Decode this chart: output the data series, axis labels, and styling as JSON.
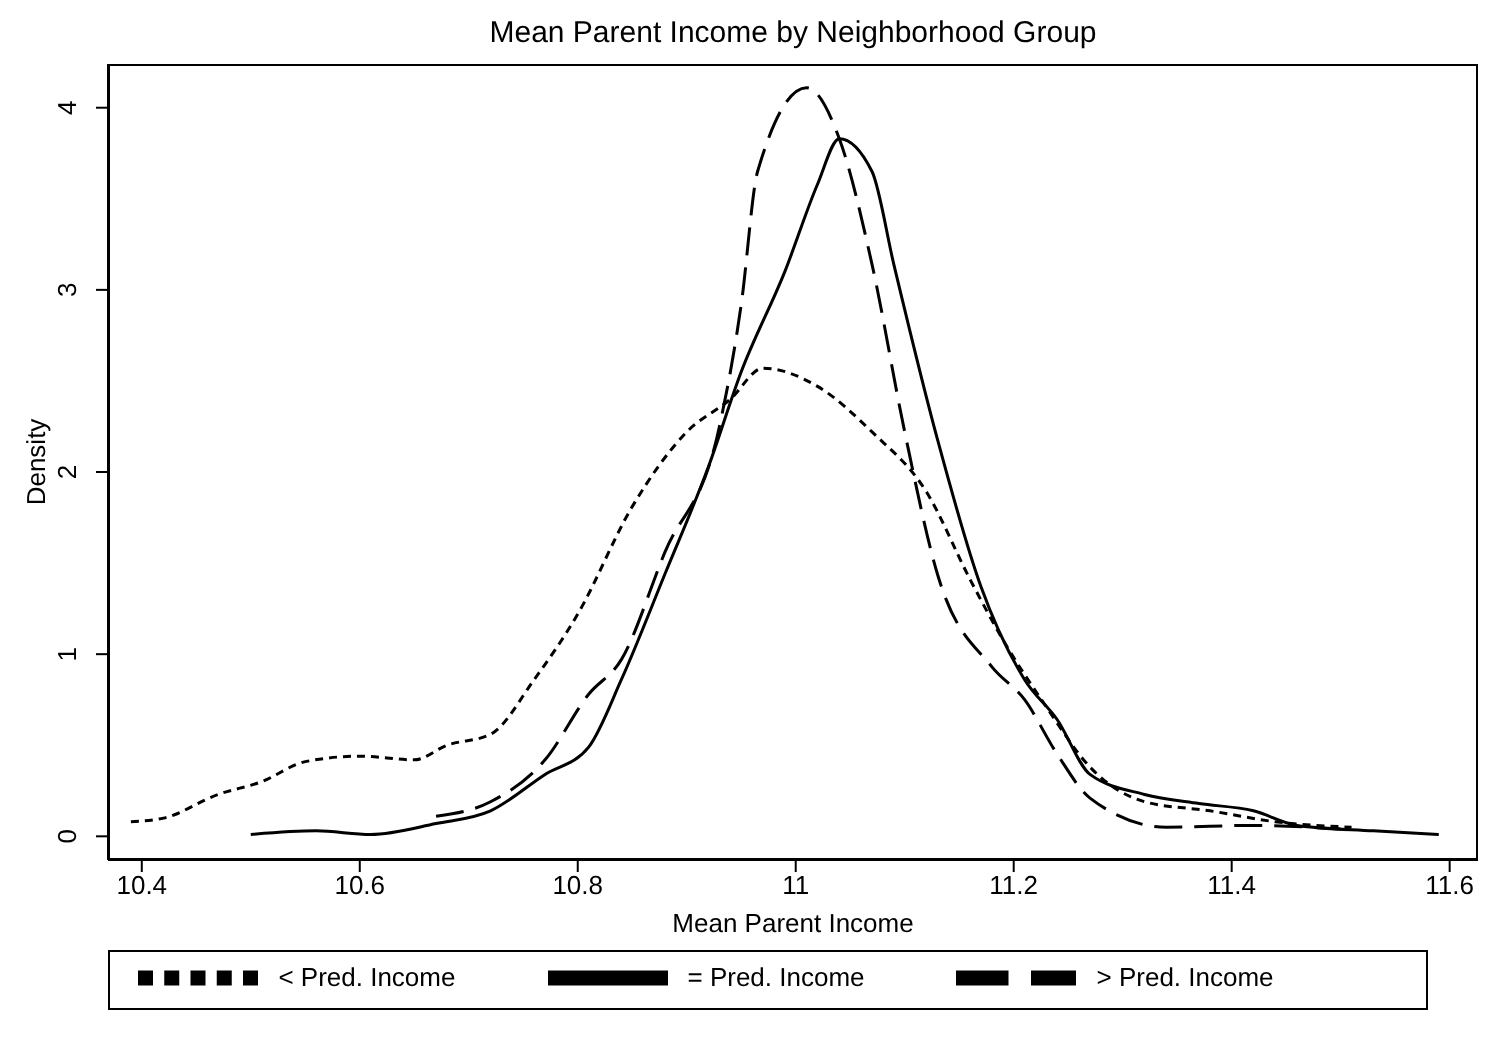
{
  "chart_data": {
    "type": "line",
    "title": "Mean Parent Income by Neighborhood Group",
    "xlabel": "Mean Parent Income",
    "ylabel": "Density",
    "xlim": [
      10.369,
      11.626
    ],
    "xticks": [
      10.4,
      10.6,
      10.8,
      {
        "value": 11,
        "label": "11"
      },
      11.2,
      11.4,
      11.6
    ],
    "ylim": [
      -0.13,
      4.24
    ],
    "yticks": [
      0,
      1,
      2,
      3,
      4
    ],
    "grid": false,
    "legend": "bottom",
    "marker": "none",
    "series": [
      {
        "name": "< Pred. Income",
        "color": "#000000",
        "line_style": "dotted",
        "x": [
          10.39,
          10.42,
          10.47,
          10.51,
          10.55,
          10.6,
          10.65,
          10.68,
          10.72,
          10.76,
          10.8,
          10.85,
          10.9,
          10.94,
          10.97,
          11.02,
          11.07,
          11.12,
          11.16,
          11.19,
          11.23,
          11.27,
          11.32,
          11.38,
          11.44,
          11.51
        ],
        "values": [
          0.08,
          0.1,
          0.23,
          0.3,
          0.41,
          0.44,
          0.42,
          0.5,
          0.56,
          0.86,
          1.22,
          1.81,
          2.22,
          2.4,
          2.57,
          2.47,
          2.22,
          1.89,
          1.41,
          1.08,
          0.71,
          0.38,
          0.19,
          0.14,
          0.08,
          0.05
        ]
      },
      {
        "name": "= Pred. Income",
        "color": "#000000",
        "line_style": "solid",
        "x": [
          10.5,
          10.56,
          10.61,
          10.67,
          10.72,
          10.77,
          10.81,
          10.84,
          10.88,
          10.92,
          10.95,
          10.99,
          11.02,
          11.04,
          11.07,
          11.09,
          11.13,
          11.17,
          11.21,
          11.24,
          11.27,
          11.32,
          11.37,
          11.42,
          11.46,
          11.53,
          11.59
        ],
        "values": [
          0.01,
          0.03,
          0.01,
          0.07,
          0.14,
          0.34,
          0.49,
          0.86,
          1.44,
          2.03,
          2.55,
          3.1,
          3.58,
          3.83,
          3.65,
          3.14,
          2.18,
          1.37,
          0.86,
          0.64,
          0.34,
          0.23,
          0.18,
          0.14,
          0.06,
          0.03,
          0.01
        ]
      },
      {
        "name": "> Pred. Income",
        "color": "#000000",
        "line_style": "dashed",
        "x": [
          10.67,
          10.72,
          10.77,
          10.81,
          10.84,
          10.88,
          10.93,
          10.95,
          10.965,
          11.01,
          11.04,
          11.07,
          11.1,
          11.13,
          11.18,
          11.21,
          11.24,
          11.27,
          11.34,
          11.42,
          11.5
        ],
        "values": [
          0.11,
          0.19,
          0.42,
          0.78,
          0.97,
          1.56,
          2.25,
          2.92,
          3.65,
          4.11,
          3.83,
          3.14,
          2.22,
          1.44,
          0.93,
          0.75,
          0.45,
          0.21,
          0.05,
          0.06,
          0.04
        ]
      }
    ]
  }
}
